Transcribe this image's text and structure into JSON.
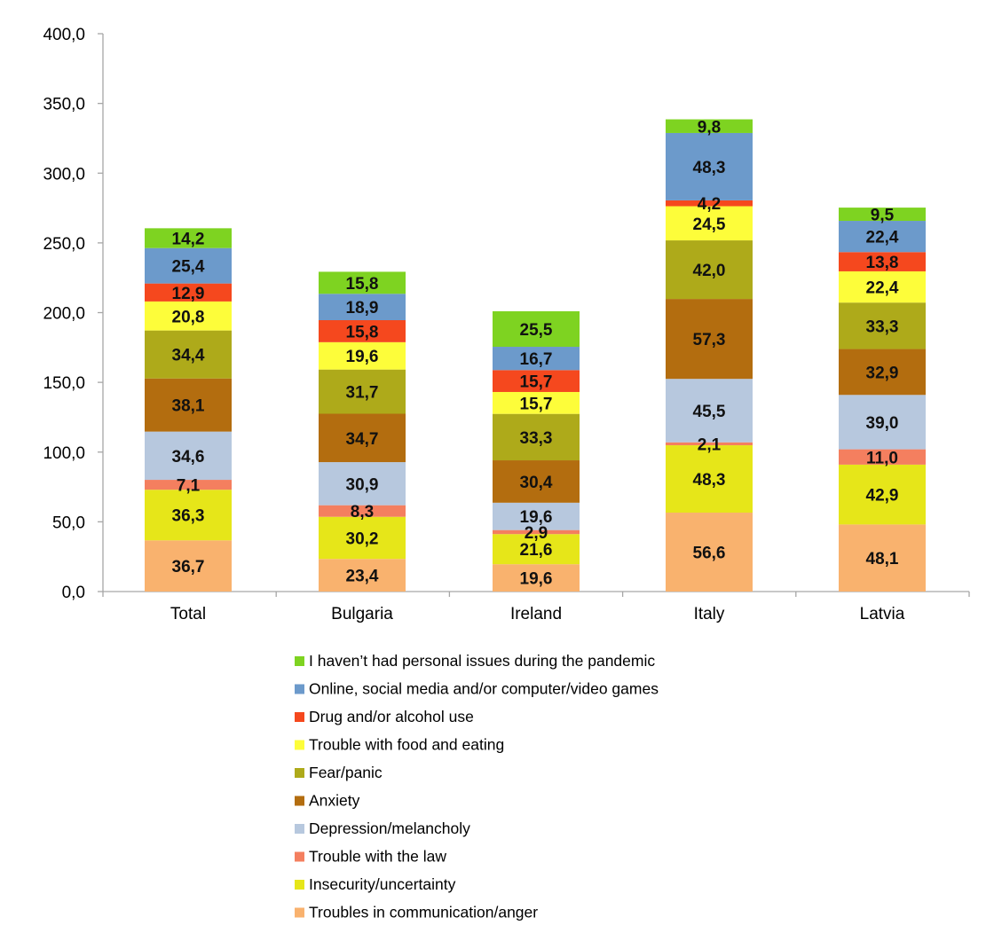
{
  "chart_data": {
    "type": "bar",
    "stacked": true,
    "title": "",
    "xlabel": "",
    "ylabel": "",
    "ylim": [
      0,
      400
    ],
    "y_ticks": [
      "0,0",
      "50,0",
      "100,0",
      "150,0",
      "200,0",
      "250,0",
      "300,0",
      "350,0",
      "400,0"
    ],
    "categories": [
      "Total",
      "Bulgaria",
      "Ireland",
      "Italy",
      "Latvia"
    ],
    "grid": false,
    "legend_position": "bottom",
    "series": [
      {
        "name": "Troubles in communication/anger",
        "color": "#F9B26E",
        "values": [
          36.7,
          23.4,
          19.6,
          56.6,
          48.1
        ],
        "labels": [
          "36,7",
          "23,4",
          "19,6",
          "56,6",
          "48,1"
        ]
      },
      {
        "name": "Insecurity/uncertainty",
        "color": "#E6E619",
        "values": [
          36.3,
          30.2,
          21.6,
          48.3,
          42.9
        ],
        "labels": [
          "36,3",
          "30,2",
          "21,6",
          "48,3",
          "42,9"
        ]
      },
      {
        "name": "Trouble with the law",
        "color": "#F47F5F",
        "values": [
          7.1,
          8.3,
          2.9,
          2.1,
          11.0
        ],
        "labels": [
          "7,1",
          "8,3",
          "2,9",
          "2,1",
          "11,0"
        ]
      },
      {
        "name": "Depression/melancholy",
        "color": "#B7C8DE",
        "values": [
          34.6,
          30.9,
          19.6,
          45.5,
          39.0
        ],
        "labels": [
          "34,6",
          "30,9",
          "19,6",
          "45,5",
          "39,0"
        ]
      },
      {
        "name": "Anxiety",
        "color": "#B36D0F",
        "values": [
          38.1,
          34.7,
          30.4,
          57.3,
          32.9
        ],
        "labels": [
          "38,1",
          "34,7",
          "30,4",
          "57,3",
          "32,9"
        ]
      },
      {
        "name": "Fear/panic",
        "color": "#AEAA1A",
        "values": [
          34.4,
          31.7,
          33.3,
          42.0,
          33.3
        ],
        "labels": [
          "34,4",
          "31,7",
          "33,3",
          "42,0",
          "33,3"
        ]
      },
      {
        "name": "Trouble with food and eating",
        "color": "#FDFD3A",
        "values": [
          20.8,
          19.6,
          15.7,
          24.5,
          22.4
        ],
        "labels": [
          "20,8",
          "19,6",
          "15,7",
          "24,5",
          "22,4"
        ]
      },
      {
        "name": "Drug and/or alcohol use",
        "color": "#F5481E",
        "values": [
          12.9,
          15.8,
          15.7,
          4.2,
          13.8
        ],
        "labels": [
          "12,9",
          "15,8",
          "15,7",
          "4,2",
          "13,8"
        ]
      },
      {
        "name": "Online, social media and/or computer/video games",
        "color": "#6C9ACB",
        "values": [
          25.4,
          18.9,
          16.7,
          48.3,
          22.4
        ],
        "labels": [
          "25,4",
          "18,9",
          "16,7",
          "48,3",
          "22,4"
        ]
      },
      {
        "name": "I haven’t had personal issues during the pandemic",
        "color": "#7ED321",
        "values": [
          14.2,
          15.8,
          25.5,
          9.8,
          9.5
        ],
        "labels": [
          "14,2",
          "15,8",
          "25,5",
          "9,8",
          "9,5"
        ]
      }
    ]
  }
}
